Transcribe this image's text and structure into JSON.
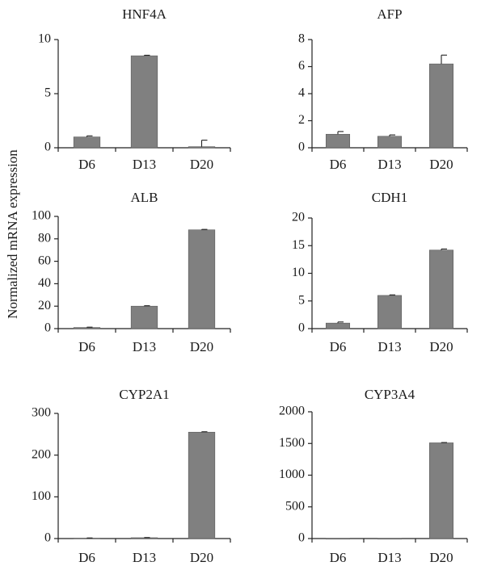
{
  "figure": {
    "ylabel": "Normalized mRNA expression"
  },
  "chart_data": [
    {
      "type": "bar",
      "title": "HNF4A",
      "categories": [
        "D6",
        "D13",
        "D20"
      ],
      "values": [
        1.0,
        8.5,
        0.1
      ],
      "errors": [
        0.1,
        0.05,
        0.6
      ],
      "yticks": [
        0,
        5,
        10
      ],
      "ylim": [
        0,
        10
      ],
      "bar_color": "#808080"
    },
    {
      "type": "bar",
      "title": "AFP",
      "categories": [
        "D6",
        "D13",
        "D20"
      ],
      "values": [
        1.0,
        0.85,
        6.2
      ],
      "errors": [
        0.2,
        0.1,
        0.65
      ],
      "yticks": [
        0,
        2,
        4,
        6,
        8
      ],
      "ylim": [
        0,
        8
      ],
      "bar_color": "#808080"
    },
    {
      "type": "bar",
      "title": "ALB",
      "categories": [
        "D6",
        "D13",
        "D20"
      ],
      "values": [
        1.0,
        20,
        88
      ],
      "errors": [
        0.3,
        0.4,
        0.4
      ],
      "yticks": [
        0,
        20,
        40,
        60,
        80,
        100
      ],
      "ylim": [
        0,
        100
      ],
      "bar_color": "#808080"
    },
    {
      "type": "bar",
      "title": "CDH1",
      "categories": [
        "D6",
        "D13",
        "D20"
      ],
      "values": [
        1.0,
        6.0,
        14.2
      ],
      "errors": [
        0.2,
        0.1,
        0.2
      ],
      "yticks": [
        0,
        5,
        10,
        15,
        20
      ],
      "ylim": [
        0,
        20
      ],
      "bar_color": "#808080"
    },
    {
      "type": "bar",
      "title": "CYP2A1",
      "categories": [
        "D6",
        "D13",
        "D20"
      ],
      "values": [
        1.0,
        2.0,
        255
      ],
      "errors": [
        0.5,
        0.5,
        1.0
      ],
      "yticks": [
        0,
        100,
        200,
        300
      ],
      "ylim": [
        0,
        300
      ],
      "bar_color": "#808080"
    },
    {
      "type": "bar",
      "title": "CYP3A4",
      "categories": [
        "D6",
        "D13",
        "D20"
      ],
      "values": [
        1.0,
        1.0,
        1510
      ],
      "errors": [
        0,
        0,
        5
      ],
      "yticks": [
        0,
        500,
        1000,
        1500,
        2000
      ],
      "ylim": [
        0,
        2000
      ],
      "bar_color": "#808080"
    }
  ]
}
